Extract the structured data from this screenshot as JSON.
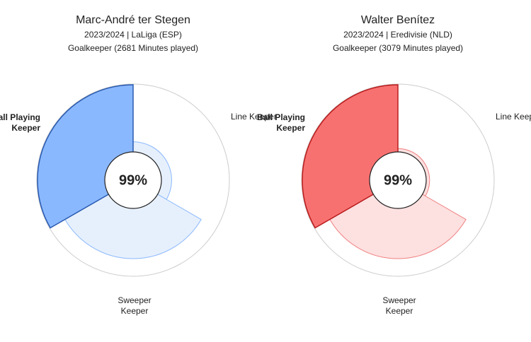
{
  "chart_data": [
    {
      "type": "radial",
      "title": "Marc-André ter Stegen",
      "subtitle": [
        "2023/2024 | LaLiga (ESP)",
        "Goalkeeper (2681 Minutes played)"
      ],
      "categories": [
        [
          "Line Keeper"
        ],
        [
          "Sweeper",
          "Keeper"
        ],
        [
          "Ball Playing",
          "Keeper"
        ]
      ],
      "values": [
        15,
        74,
        99
      ],
      "rlim": [
        0,
        100
      ],
      "colors": [
        "#e6f0fc",
        "#e6f0fc",
        "#8ab8ff"
      ],
      "strokes": [
        "#8ab8ff",
        "#8ab8ff",
        "#2a5bb0"
      ],
      "bold": [
        false,
        false,
        true
      ],
      "center_label": "99%"
    },
    {
      "type": "radial",
      "title": "Walter Benítez",
      "subtitle": [
        "2023/2024 | Eredivisie (NLD)",
        "Goalkeeper (3079 Minutes played)"
      ],
      "categories": [
        [
          "Line Keeper"
        ],
        [
          "Sweeper",
          "Keeper"
        ],
        [
          "Ball Playing",
          "Keeper"
        ]
      ],
      "values": [
        5,
        74,
        99
      ],
      "rlim": [
        0,
        100
      ],
      "colors": [
        "#fde0e0",
        "#fde0e0",
        "#f87171"
      ],
      "strokes": [
        "#f08080",
        "#f08080",
        "#b91c1c"
      ],
      "bold": [
        false,
        false,
        true
      ],
      "center_label": "99%"
    }
  ]
}
